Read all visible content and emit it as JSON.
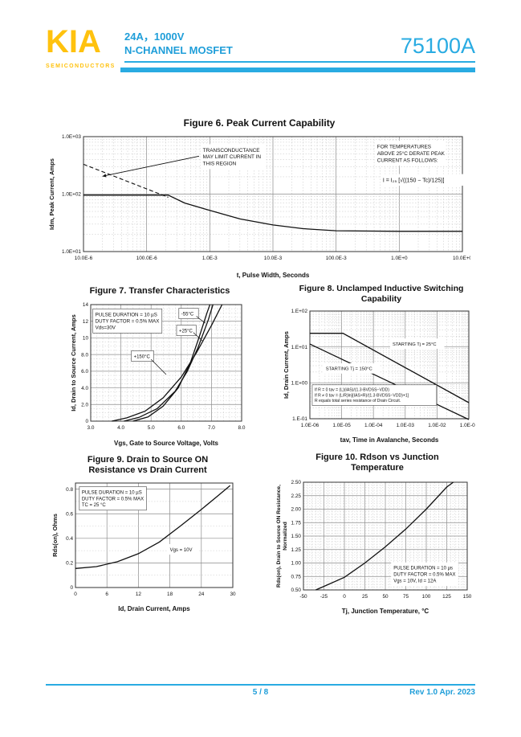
{
  "header": {
    "logo": "KIA",
    "logo_sub": "SEMICONDUCTORS",
    "subtitle_line1": "24A，1000V",
    "subtitle_line2": "N-CHANNEL MOSFET",
    "part_number": "75100A",
    "accent_color": "#29ABE2",
    "logo_color": "#FFC20E"
  },
  "footer": {
    "page": "5 / 8",
    "revision": "Rev 1.0 Apr. 2023"
  },
  "chart_data": [
    {
      "id": "fig6",
      "type": "line",
      "title": "Figure 6. Peak Current Capability",
      "xlabel": "t, Pulse Width, Seconds",
      "ylabel": "Idm, Peak Current, Amps",
      "xscale": "log",
      "yscale": "log",
      "xlim": [
        1e-05,
        10
      ],
      "ylim": [
        10,
        1000
      ],
      "x_ticks": {
        "values": [
          1e-05,
          0.0001,
          0.001,
          0.01,
          0.1,
          1,
          10
        ],
        "labels": [
          "10.0E-6",
          "100.0E-6",
          "1.0E-3",
          "10.0E-3",
          "100.0E-3",
          "1.0E+0",
          "10.0E+0"
        ]
      },
      "y_ticks": {
        "values": [
          10,
          100,
          1000
        ],
        "labels": [
          "1.0E+01",
          "1.0E+02",
          "1.0E+03"
        ]
      },
      "grid": "on",
      "legend": "none",
      "series": [
        {
          "name": "transconductance-limit",
          "dash": true,
          "points": [
            [
              1e-05,
              330
            ],
            [
              0.00022,
              88
            ]
          ]
        },
        {
          "name": "peak-current",
          "dash": false,
          "points": [
            [
              1e-05,
              96
            ],
            [
              0.00022,
              96
            ],
            [
              0.0004,
              70
            ],
            [
              0.001,
              52
            ],
            [
              0.003,
              37
            ],
            [
              0.01,
              29
            ],
            [
              0.03,
              25
            ],
            [
              0.1,
              23
            ],
            [
              1,
              22.5
            ],
            [
              10,
              22.5
            ]
          ]
        }
      ],
      "annotations": [
        {
          "name": "transconductance-note",
          "lines": [
            "TRANSCONDUCTANCE",
            "MAY LIMIT CURRENT IN",
            "THIS REGION"
          ],
          "fx": 0.315,
          "fy": 0.08,
          "size": 6.4,
          "box": "plain"
        },
        {
          "name": "derate-note",
          "lines": [
            "FOR TEMPERATURES",
            "ABOVE 25°C DERATE PEAK",
            "CURRENT AS FOLLOWS:"
          ],
          "fx": 0.775,
          "fy": 0.05,
          "size": 6.4,
          "box": "plain"
        },
        {
          "name": "derate-formula",
          "lines": [
            "I = I₂₅ [√((150 − Tc)/125)]"
          ],
          "fx": 0.79,
          "fy": 0.34,
          "size": 7,
          "box": "plain"
        }
      ],
      "arrows": [
        {
          "from": [
            0.305,
            0.17
          ],
          "to": [
            0.05,
            0.345
          ]
        }
      ]
    },
    {
      "id": "fig7",
      "type": "line",
      "title": "Figure 7. Transfer Characteristics",
      "xlabel": "Vgs, Gate to Source Voltage, Volts",
      "ylabel": "Id, Drain to Source Current, Amps",
      "xscale": "linear",
      "yscale": "linear",
      "xlim": [
        3,
        8
      ],
      "ylim": [
        0,
        14
      ],
      "x_ticks": {
        "values": [
          3,
          4,
          5,
          6,
          7,
          8
        ],
        "labels": [
          "3.0",
          "4.0",
          "5.0",
          "6.0",
          "7.0",
          "8.0"
        ]
      },
      "y_ticks": {
        "values": [
          0,
          2,
          4,
          6,
          8,
          10,
          12,
          14
        ],
        "labels": [
          "0",
          "2.0",
          "4.0",
          "6.0",
          "8.0",
          "10",
          "12",
          "14"
        ]
      },
      "minor": {
        "x": 5,
        "y": 4
      },
      "grid": "on",
      "series": [
        {
          "name": "-55C",
          "points": [
            [
              4.4,
              0
            ],
            [
              4.9,
              0.5
            ],
            [
              5.4,
              1.8
            ],
            [
              5.9,
              4.0
            ],
            [
              6.3,
              7.0
            ],
            [
              6.6,
              10.2
            ],
            [
              6.85,
              13.0
            ],
            [
              6.95,
              14.0
            ]
          ]
        },
        {
          "name": "+25C",
          "points": [
            [
              4.1,
              0
            ],
            [
              4.6,
              0.45
            ],
            [
              5.2,
              1.5
            ],
            [
              5.8,
              3.6
            ],
            [
              6.2,
              6.0
            ],
            [
              6.55,
              8.8
            ],
            [
              6.9,
              12.2
            ],
            [
              7.05,
              14.0
            ]
          ]
        },
        {
          "name": "+150C",
          "points": [
            [
              3.7,
              0
            ],
            [
              4.2,
              0.4
            ],
            [
              4.8,
              1.2
            ],
            [
              5.4,
              2.8
            ],
            [
              6.0,
              5.3
            ],
            [
              6.5,
              8.2
            ],
            [
              7.0,
              11.5
            ],
            [
              7.35,
              14.0
            ]
          ]
        }
      ],
      "annotations": [
        {
          "name": "conditions",
          "lines": [
            "PULSE DURATION = 10 µS",
            "DUTY FACTOR = 0.5% MAX",
            "Vds=30V"
          ],
          "fx": 0.03,
          "fy": 0.05,
          "size": 6.2,
          "box": "stroke"
        },
        {
          "name": "label-minus55",
          "lines": [
            "-55°C"
          ],
          "fx": 0.6,
          "fy": 0.045,
          "size": 6,
          "box": "stroke",
          "leader": [
            0.7,
            0.1,
            0.76,
            0.16
          ]
        },
        {
          "name": "label-plus25",
          "lines": [
            "+25°C"
          ],
          "fx": 0.585,
          "fy": 0.19,
          "size": 6,
          "box": "stroke",
          "leader": [
            0.68,
            0.24,
            0.74,
            0.31
          ]
        },
        {
          "name": "label-plus150",
          "lines": [
            "+150°C"
          ],
          "fx": 0.285,
          "fy": 0.41,
          "size": 6,
          "box": "stroke",
          "leader": [
            0.4,
            0.47,
            0.5,
            0.6
          ]
        }
      ]
    },
    {
      "id": "fig8",
      "type": "line",
      "title": "Figure 8. Unclamped Inductive Switching",
      "title2": "Capability",
      "xlabel": "tav, Time in Avalanche, Seconds",
      "ylabel": "Id, Drain Current, Amps",
      "xscale": "log",
      "yscale": "log",
      "xlim": [
        1e-06,
        0.1
      ],
      "ylim": [
        0.1,
        100
      ],
      "x_ticks": {
        "values": [
          1e-06,
          1e-05,
          0.0001,
          0.001,
          0.01,
          0.1
        ],
        "labels": [
          "1.0E-06",
          "1.0E-05",
          "1.0E-04",
          "1.0E-03",
          "1.0E-02",
          "1.0E-01"
        ]
      },
      "y_ticks": {
        "values": [
          0.1,
          1,
          10,
          100
        ],
        "labels": [
          "1.E-01",
          "1.E+00",
          "1.E+01",
          "1.E+02"
        ]
      },
      "grid": "on",
      "series": [
        {
          "name": "starting-tj-25C",
          "points": [
            [
              1e-06,
              24
            ],
            [
              1.1e-05,
              24
            ],
            [
              0.1,
              0.28
            ]
          ]
        },
        {
          "name": "starting-tj-150C",
          "points": [
            [
              1e-06,
              12
            ],
            [
              0.1,
              0.095
            ]
          ]
        }
      ],
      "annotations": [
        {
          "name": "label-tj25",
          "lines": [
            "STARTING Tj = 25°C"
          ],
          "fx": 0.52,
          "fy": 0.27,
          "size": 5.8,
          "box": "plain"
        },
        {
          "name": "label-tj150",
          "lines": [
            "STARTING Tj = 150°C"
          ],
          "fx": 0.1,
          "fy": 0.5,
          "size": 5.8,
          "box": "plain"
        },
        {
          "name": "note",
          "lines": [
            "If R = 0  tav = (L)(IAS)/(1.3·BVDSS−VDD)",
            "If R ≠ 0  tav = (L/R)ln[(IAS×R)/(1.3·BVDSS−VDD)+1]",
            "R equals total series resistance of Drain Circuit."
          ],
          "fx": 0.03,
          "fy": 0.7,
          "size": 5.1,
          "box": "stroke"
        }
      ]
    },
    {
      "id": "fig9",
      "type": "line",
      "title": "Figure 9. Drain to Source ON",
      "title2": "Resistance vs Drain Current",
      "xlabel": "Id, Drain Current, Amps",
      "ylabel": "Rds(on),  Ohms",
      "xscale": "linear",
      "yscale": "linear",
      "xlim": [
        0,
        30
      ],
      "ylim": [
        0,
        0.85
      ],
      "x_ticks": {
        "values": [
          0,
          6,
          12,
          18,
          24,
          30
        ],
        "labels": [
          "0",
          "6",
          "12",
          "18",
          "24",
          "30"
        ]
      },
      "y_ticks": {
        "values": [
          0,
          0.2,
          0.4,
          0.6,
          0.8
        ],
        "labels": [
          "0",
          "0.2",
          "0.4",
          "0.6",
          "0.8"
        ]
      },
      "minor": {
        "x": 0,
        "y": 2
      },
      "grid": "on",
      "series": [
        {
          "name": "rdson-vs-id",
          "points": [
            [
              0,
              0.155
            ],
            [
              4,
              0.17
            ],
            [
              8,
              0.21
            ],
            [
              12,
              0.275
            ],
            [
              16,
              0.37
            ],
            [
              20,
              0.5
            ],
            [
              24,
              0.635
            ],
            [
              27,
              0.74
            ],
            [
              29.5,
              0.83
            ]
          ]
        }
      ],
      "annotations": [
        {
          "name": "conditions",
          "lines": [
            "PULSE DURATION = 10 µS",
            "DUTY FACTOR = 0.5% MAX",
            "TC = 25 °C"
          ],
          "fx": 0.04,
          "fy": 0.05,
          "size": 6,
          "box": "stroke"
        },
        {
          "name": "label-vgs",
          "lines": [
            "Vgs = 10V"
          ],
          "fx": 0.6,
          "fy": 0.6,
          "size": 6,
          "box": "plain"
        }
      ]
    },
    {
      "id": "fig10",
      "type": "line",
      "title": "Figure 10. Rdson vs Junction",
      "title2": "Temperature",
      "xlabel": "Tj, Junction Temperature, °C",
      "ylabel": "Rds(on), Drain to Source ON Resistance,",
      "ylabel2": "Normalized",
      "xscale": "linear",
      "yscale": "linear",
      "xlim": [
        -50,
        150
      ],
      "ylim": [
        0.5,
        2.5
      ],
      "x_ticks": {
        "values": [
          -50,
          -25,
          0,
          25,
          50,
          75,
          100,
          125,
          150
        ],
        "labels": [
          "-50",
          "-25",
          "0",
          "25",
          "50",
          "75",
          "100",
          "125",
          "150"
        ]
      },
      "y_ticks": {
        "values": [
          0.5,
          0.75,
          1.0,
          1.25,
          1.5,
          1.75,
          2.0,
          2.25,
          2.5
        ],
        "labels": [
          "0.50",
          "0.75",
          "1.00",
          "1.25",
          "1.50",
          "1.75",
          "2.00",
          "2.25",
          "2.50"
        ]
      },
      "minor": {
        "x": 5,
        "y": 5
      },
      "grid": "on",
      "series": [
        {
          "name": "normalized-rdson",
          "points": [
            [
              -35,
              0.5
            ],
            [
              -25,
              0.565
            ],
            [
              0,
              0.735
            ],
            [
              25,
              1.0
            ],
            [
              50,
              1.3
            ],
            [
              75,
              1.63
            ],
            [
              100,
              2.0
            ],
            [
              125,
              2.41
            ],
            [
              133,
              2.5
            ]
          ]
        }
      ],
      "annotations": [
        {
          "name": "conditions",
          "lines": [
            "PULSE DURATION = 10 µs",
            "DUTY FACTOR = 0.5% MAX",
            "Vgs = 10V, Id = 12A"
          ],
          "fx": 0.55,
          "fy": 0.76,
          "size": 6,
          "box": "plain"
        }
      ]
    }
  ]
}
